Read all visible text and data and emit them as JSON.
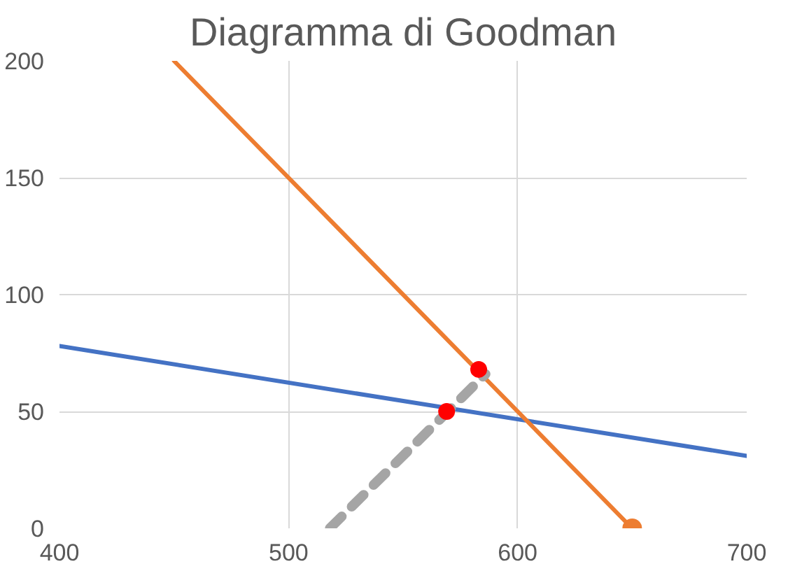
{
  "chart_data": {
    "type": "line",
    "title": "Diagramma di Goodman",
    "xlim": [
      400,
      700
    ],
    "ylim": [
      0,
      200
    ],
    "xticks": [
      400,
      500,
      600,
      700
    ],
    "yticks": [
      0,
      50,
      100,
      150,
      200
    ],
    "grid": true,
    "line_style": "solid",
    "series": [
      {
        "color": "#4472c4",
        "x": [
          400,
          700
        ],
        "values": [
          78,
          31
        ]
      },
      {
        "color": "#ed7d31",
        "x": [
          450,
          650
        ],
        "values": [
          200,
          0
        ]
      },
      {
        "type": "scatter",
        "marker": "circle",
        "color": "#ed7d31",
        "x": [
          650
        ],
        "values": [
          0
        ]
      },
      {
        "color": "#a5a5a5",
        "line_style": "dashed",
        "x": [
          518,
          586
        ],
        "values": [
          0,
          66
        ]
      },
      {
        "type": "scatter",
        "marker": "circle",
        "color": "#ff0000",
        "x": [
          569,
          583
        ],
        "values": [
          50,
          68
        ]
      }
    ]
  }
}
